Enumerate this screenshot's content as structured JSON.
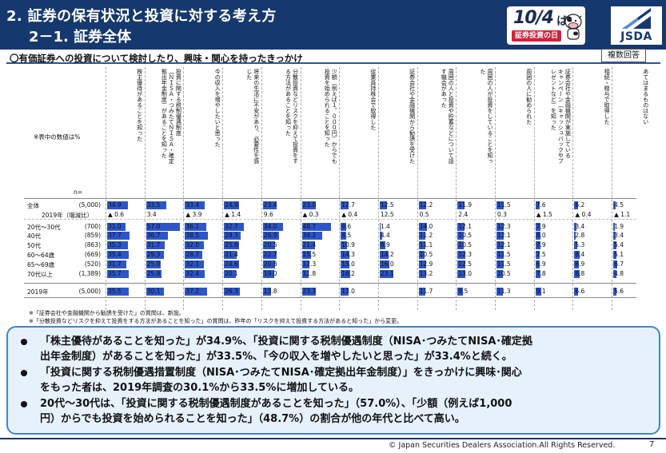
{
  "header": {
    "title_line1": "2. 証券の保有状況と投資に対する考え方",
    "title_line2": "2－1. 証券全体",
    "logo_day_date": "10/4",
    "logo_day_ha": "は",
    "logo_day_band": "証券投資の日",
    "logo_jsda": "JSDA"
  },
  "subtitle": "〇有価証券への投資について検討したり、興味・関心を持ったきっかけ",
  "badge": "複数回答",
  "table": {
    "note_values": "※表中の数値は%",
    "n_label": "n=",
    "columns": [
      "株主優待があることを知った",
      "投資に関する税制優遇制度\n（ＮＩＳＡ・つみたてＮＩＳＡ・確定\n拠出年金制度）があることを知った",
      "今の収入を増やしたいと思った",
      "将来の生活に不安があり、必要性を感\nじた",
      "分散投資などリスクを抑えて投資をす\nる方法があることを知った",
      "少額（例えば１，０００円）からでも\n投資を始められることを知った",
      "従業員持株会で取得した",
      "証券会社や金融機関から勧誘を受けた",
      "周囲の人と投資や貯蓄などについて話\nす機会があった",
      "周囲の人が投資をしていることを知っ\nた",
      "周囲の人に勧められた",
      "証券会社や金融機関が実施している\nキャンペーン（キャッシュバックやプ\nレゼントなど）を知った",
      "相続・贈与で取得した",
      "あてはまるものはない"
    ],
    "rows": [
      {
        "label": "全体",
        "n": "(5,000)",
        "values": [
          "34.9",
          "33.5",
          "33.4",
          "24.9",
          "23.4",
          "23.0",
          "12.7",
          "12.5",
          "12.2",
          "11.9",
          "11.5",
          "7.6",
          "6.2",
          "4.5"
        ],
        "bars": [
          34.9,
          33.5,
          33.4,
          24.9,
          23.4,
          23.0,
          12.7,
          12.5,
          12.2,
          11.9,
          11.5,
          7.6,
          6.2,
          4.5
        ]
      },
      {
        "label": "2019年（増減比）",
        "n": "",
        "values": [
          "▲ 0.6",
          "3.4",
          "▲ 3.9",
          "▲ 1.4",
          "9.6",
          "▲ 0.3",
          "▲ 0.4",
          "12.5",
          "0.5",
          "2.4",
          "0.3",
          "▲ 1.5",
          "▲ 0.4",
          "▲ 1.1"
        ],
        "bars": []
      },
      {
        "label": "20代～30代",
        "n": "(700)",
        "values": [
          "31.0",
          "57.0",
          "36.1",
          "32.7",
          "34.0",
          "48.7",
          "9.6",
          "1.4",
          "14.0",
          "12.1",
          "12.3",
          "7.9",
          "3.4",
          "1.9"
        ],
        "bars": [
          31.0,
          57.0,
          36.1,
          32.7,
          34.0,
          48.7,
          9.6,
          1.4,
          14.0,
          12.1,
          12.3,
          7.9,
          3.4,
          1.9
        ]
      },
      {
        "label": "40代",
        "n": "(859)",
        "values": [
          "37.7",
          "36.7",
          "38.5",
          "28.3",
          "26.9",
          "34.2",
          "8.5",
          "4.4",
          "11.2",
          "10.5",
          "12.1",
          "8.0",
          "2.8",
          "3.4"
        ],
        "bars": [
          37.7,
          36.7,
          38.5,
          28.3,
          26.9,
          34.2,
          8.5,
          4.4,
          11.2,
          10.5,
          12.1,
          8.0,
          2.8,
          3.4
        ]
      },
      {
        "label": "50代",
        "n": "(863)",
        "values": [
          "35.3",
          "31.7",
          "32.0",
          "25.8",
          "20.5",
          "21.4",
          "10.9",
          "8.9",
          "11.1",
          "10.5",
          "12.1",
          "7.9",
          "5.3",
          "5.4"
        ],
        "bars": [
          35.3,
          31.7,
          32.0,
          25.8,
          20.5,
          21.4,
          10.9,
          8.9,
          11.1,
          10.5,
          12.1,
          7.9,
          5.3,
          5.4
        ]
      },
      {
        "label": "60～64歳",
        "n": "(669)",
        "values": [
          "35.4",
          "29.3",
          "28.7",
          "21.4",
          "22.7",
          "15.5",
          "14.3",
          "14.2",
          "10.5",
          "12.3",
          "11.5",
          "7.5",
          "8.4",
          "5.1"
        ],
        "bars": [
          35.4,
          29.3,
          28.7,
          21.4,
          22.7,
          15.5,
          14.3,
          14.2,
          10.5,
          12.3,
          11.5,
          7.5,
          8.4,
          5.1
        ]
      },
      {
        "label": "65～69歳",
        "n": "(520)",
        "values": [
          "31.7",
          "25.0",
          "32.1",
          "24.6",
          "20.8",
          "12.3",
          "15.0",
          "16.0",
          "12.9",
          "12.5",
          "11.5",
          "6.9",
          "6.9",
          "6.7"
        ],
        "bars": [
          31.7,
          25.0,
          32.1,
          24.6,
          20.8,
          12.3,
          15.0,
          16.0,
          12.9,
          12.5,
          11.5,
          6.9,
          6.9,
          6.7
        ]
      },
      {
        "label": "70代以上",
        "n": "(1,389)",
        "values": [
          "35.7",
          "25.8",
          "32.4",
          "20.1",
          "19.0",
          "11.8",
          "16.2",
          "23.1",
          "13.2",
          "13.0",
          "10.5",
          "7.8",
          "8.8",
          "4.8"
        ],
        "bars": [
          35.7,
          25.8,
          32.4,
          20.1,
          19.0,
          11.8,
          16.2,
          23.1,
          13.2,
          13.0,
          10.5,
          7.8,
          8.8,
          4.8
        ]
      },
      {
        "label": "2019年",
        "n": "(5,000)",
        "values": [
          "35.5",
          "30.1",
          "37.2",
          "26.3",
          "13.8",
          "23.3",
          "13.0",
          "",
          "11.7",
          "9.5",
          "11.3",
          "9.1",
          "6.6",
          "5.6"
        ],
        "bars": [
          35.5,
          30.1,
          37.2,
          26.3,
          13.8,
          23.3,
          13.0,
          0,
          11.7,
          9.5,
          11.3,
          9.1,
          6.6,
          5.6
        ]
      }
    ]
  },
  "footnotes": [
    "※「証券会社や金融機関から勧誘を受けた」の質問は、新設。",
    "※「分散投資などリスクを抑えて投資をする方法があることを知った」の質問は、昨年の「リスクを抑えて投資する方法があると知った」から変更。"
  ],
  "summary": {
    "b1_l1": "「株主優待があることを知った」が34.9%、「投資に関する税制優遇制度（NISA･つみたてNISA･確定拠",
    "b1_l2": "出年金制度）があることを知った」が33.5%、「今の収入を増やしたいと思った」が33.4%と続く。",
    "b2_l1": "「投資に関する税制優遇措置制度（NISA･つみたてNISA･確定拠出年金制度）」をきっかけに興味･関心",
    "b2_l2": "をもった者は、2019年調査の30.1%から33.5%に増加している。",
    "b3_l1": "20代～30代は、「投資に関する税制優遇制度があることを知った」（57.0%）、「少額（例えば1,000",
    "b3_l2": "円）からでも投資を始められることを知った」（48.7%）の割合が他の年代と比べて高い。"
  },
  "footer": {
    "copyright": "© Japan Securities Dealers Association.All Rights Reserved.",
    "page": "7"
  },
  "colors": {
    "navy": "#15386e",
    "bar": "#2d55c9",
    "box_fill": "#e6f1fb",
    "box_border": "#3f86d4",
    "red": "#d4213d"
  }
}
